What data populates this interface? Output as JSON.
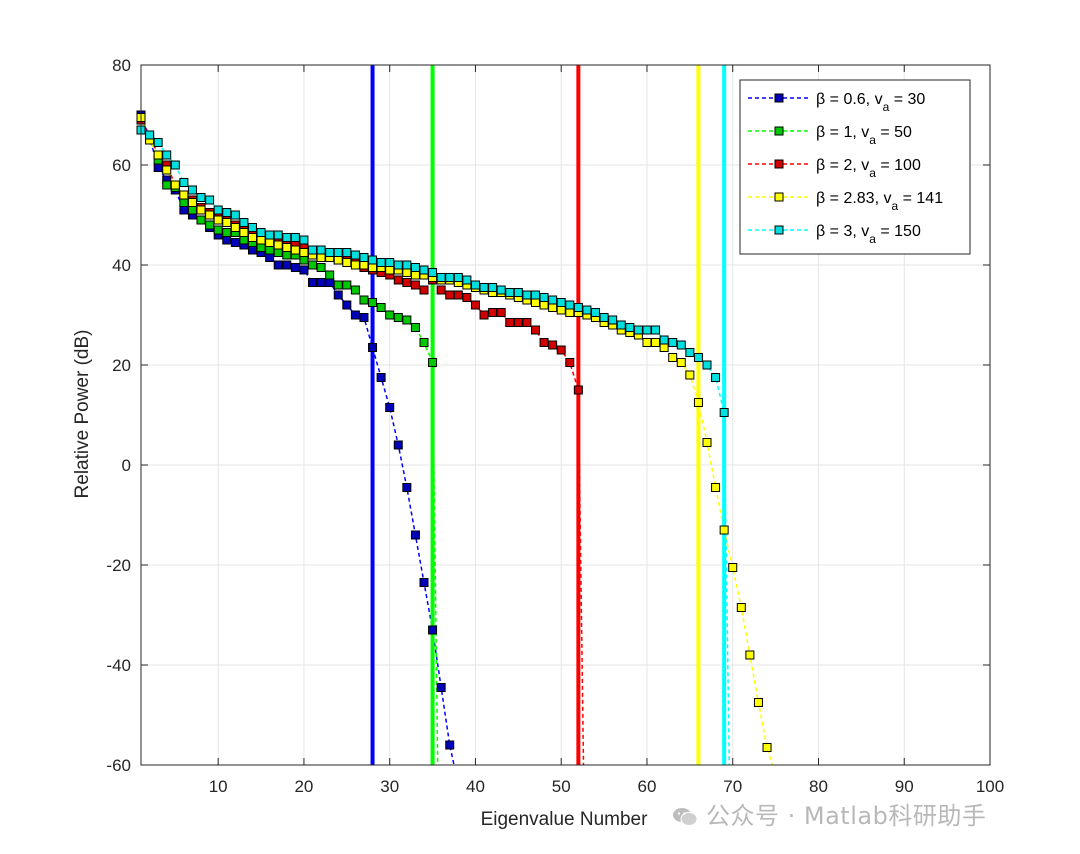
{
  "chart_data": {
    "type": "line",
    "title": "",
    "xlabel": "Eigenvalue Number",
    "ylabel": "Relative Power (dB)",
    "xlim": [
      1,
      100
    ],
    "ylim": [
      -60,
      80
    ],
    "xticks": [
      10,
      20,
      30,
      40,
      50,
      60,
      70,
      80,
      90,
      100
    ],
    "yticks": [
      -60,
      -40,
      -20,
      0,
      20,
      40,
      60,
      80
    ],
    "grid": true,
    "legend_position": "top-right",
    "series": [
      {
        "legend": [
          "β = 0.6,  v",
          "a",
          " = 30"
        ],
        "color": "#0000ff",
        "fill": "#0000b8",
        "cutoff": 28,
        "line_end": [
          37.5,
          -60
        ],
        "points": [
          [
            1,
            70
          ],
          [
            2,
            65.5
          ],
          [
            3,
            59.5
          ],
          [
            4,
            57
          ],
          [
            5,
            55
          ],
          [
            6,
            51
          ],
          [
            7,
            50
          ],
          [
            8,
            49
          ],
          [
            9,
            47.5
          ],
          [
            10,
            46
          ],
          [
            11,
            45
          ],
          [
            12,
            44.5
          ],
          [
            13,
            44
          ],
          [
            14,
            43
          ],
          [
            15,
            42.5
          ],
          [
            16,
            41.5
          ],
          [
            17,
            40
          ],
          [
            18,
            40
          ],
          [
            19,
            39.5
          ],
          [
            20,
            39
          ],
          [
            21,
            36.5
          ],
          [
            22,
            36.5
          ],
          [
            23,
            36.5
          ],
          [
            24,
            34
          ],
          [
            25,
            32
          ],
          [
            26,
            30
          ],
          [
            27,
            29.5
          ],
          [
            28,
            23.5
          ],
          [
            29,
            17.5
          ],
          [
            30,
            11.5
          ],
          [
            31,
            4
          ],
          [
            32,
            -4.5
          ],
          [
            33,
            -14
          ],
          [
            34,
            -23.5
          ],
          [
            35,
            -33
          ],
          [
            36,
            -44.5
          ],
          [
            37,
            -56
          ]
        ]
      },
      {
        "legend": [
          "β = 1,     v",
          "a",
          " = 50"
        ],
        "color": "#00ff00",
        "fill": "#00c800",
        "cutoff": 35,
        "line_end": [
          35.6,
          -60
        ],
        "points": [
          [
            1,
            69.5
          ],
          [
            2,
            65.5
          ],
          [
            3,
            61
          ],
          [
            4,
            56
          ],
          [
            5,
            55.5
          ],
          [
            6,
            52.5
          ],
          [
            7,
            51
          ],
          [
            8,
            49
          ],
          [
            9,
            48
          ],
          [
            10,
            47
          ],
          [
            11,
            46.5
          ],
          [
            12,
            46.5
          ],
          [
            13,
            45
          ],
          [
            14,
            44.5
          ],
          [
            15,
            43.5
          ],
          [
            16,
            43
          ],
          [
            17,
            42.5
          ],
          [
            18,
            42
          ],
          [
            19,
            42
          ],
          [
            20,
            41
          ],
          [
            21,
            40
          ],
          [
            22,
            39.5
          ],
          [
            23,
            38
          ],
          [
            24,
            36
          ],
          [
            25,
            36
          ],
          [
            26,
            35
          ],
          [
            27,
            33
          ],
          [
            28,
            32.5
          ],
          [
            29,
            31.5
          ],
          [
            30,
            30
          ],
          [
            31,
            29.5
          ],
          [
            32,
            29
          ],
          [
            33,
            27.5
          ],
          [
            34,
            24.5
          ],
          [
            35,
            20.5
          ]
        ]
      },
      {
        "legend": [
          "β = 2,     v",
          "a",
          " = 100"
        ],
        "color": "#ff0000",
        "fill": "#d00000",
        "cutoff": 52,
        "line_end": [
          52.6,
          -60
        ],
        "points": [
          [
            1,
            69
          ],
          [
            2,
            66
          ],
          [
            3,
            62
          ],
          [
            4,
            60
          ],
          [
            5,
            56
          ],
          [
            6,
            54
          ],
          [
            7,
            53
          ],
          [
            8,
            51.5
          ],
          [
            9,
            50.5
          ],
          [
            10,
            49.5
          ],
          [
            11,
            49
          ],
          [
            12,
            48
          ],
          [
            13,
            47
          ],
          [
            14,
            46
          ],
          [
            15,
            45.5
          ],
          [
            16,
            45
          ],
          [
            17,
            44.5
          ],
          [
            18,
            44
          ],
          [
            19,
            44
          ],
          [
            20,
            43.5
          ],
          [
            21,
            42.5
          ],
          [
            22,
            42.5
          ],
          [
            23,
            42
          ],
          [
            24,
            41
          ],
          [
            25,
            41
          ],
          [
            26,
            40.5
          ],
          [
            27,
            39.5
          ],
          [
            28,
            39
          ],
          [
            29,
            38.5
          ],
          [
            30,
            38
          ],
          [
            31,
            37
          ],
          [
            32,
            36.5
          ],
          [
            33,
            36
          ],
          [
            34,
            35
          ],
          [
            35,
            37
          ],
          [
            36,
            35
          ],
          [
            37,
            34
          ],
          [
            38,
            34
          ],
          [
            39,
            33.5
          ],
          [
            40,
            32
          ],
          [
            41,
            30
          ],
          [
            42,
            30.5
          ],
          [
            43,
            30.5
          ],
          [
            44,
            28.5
          ],
          [
            45,
            28.5
          ],
          [
            46,
            28.5
          ],
          [
            47,
            27
          ],
          [
            48,
            24.5
          ],
          [
            49,
            24
          ],
          [
            50,
            23
          ],
          [
            51,
            20.5
          ],
          [
            52,
            15
          ]
        ]
      },
      {
        "legend": [
          "β = 2.83, v",
          "a",
          " = 141"
        ],
        "color": "#ffff00",
        "fill": "#ffff00",
        "cutoff": 66,
        "line_end": [
          74.6,
          -60
        ],
        "points": [
          [
            1,
            69.5
          ],
          [
            2,
            65
          ],
          [
            3,
            62
          ],
          [
            4,
            59
          ],
          [
            5,
            56
          ],
          [
            6,
            54
          ],
          [
            7,
            52.5
          ],
          [
            8,
            51
          ],
          [
            9,
            50
          ],
          [
            10,
            49
          ],
          [
            11,
            48.5
          ],
          [
            12,
            47.5
          ],
          [
            13,
            46.5
          ],
          [
            14,
            45.5
          ],
          [
            15,
            45
          ],
          [
            16,
            44.5
          ],
          [
            17,
            44
          ],
          [
            18,
            43.5
          ],
          [
            19,
            43
          ],
          [
            20,
            42.5
          ],
          [
            21,
            42
          ],
          [
            22,
            41.5
          ],
          [
            23,
            41.5
          ],
          [
            24,
            41
          ],
          [
            25,
            40.5
          ],
          [
            26,
            40
          ],
          [
            27,
            40
          ],
          [
            28,
            39.5
          ],
          [
            29,
            39.5
          ],
          [
            30,
            39
          ],
          [
            31,
            39
          ],
          [
            32,
            38.5
          ],
          [
            33,
            38
          ],
          [
            34,
            38
          ],
          [
            35,
            37.5
          ],
          [
            36,
            37
          ],
          [
            37,
            37
          ],
          [
            38,
            36.5
          ],
          [
            39,
            36
          ],
          [
            40,
            35.5
          ],
          [
            41,
            35
          ],
          [
            42,
            34.5
          ],
          [
            43,
            34.5
          ],
          [
            44,
            34
          ],
          [
            45,
            33.5
          ],
          [
            46,
            33
          ],
          [
            47,
            32.5
          ],
          [
            48,
            32
          ],
          [
            49,
            31.5
          ],
          [
            50,
            31
          ],
          [
            51,
            30.5
          ],
          [
            52,
            30.5
          ],
          [
            53,
            30
          ],
          [
            54,
            29.5
          ],
          [
            55,
            28.5
          ],
          [
            56,
            28
          ],
          [
            57,
            27
          ],
          [
            58,
            26.5
          ],
          [
            59,
            26
          ],
          [
            60,
            24.5
          ],
          [
            61,
            24.5
          ],
          [
            62,
            23.5
          ],
          [
            63,
            21.5
          ],
          [
            64,
            20.5
          ],
          [
            65,
            18
          ],
          [
            66,
            12.5
          ],
          [
            67,
            4.5
          ],
          [
            68,
            -4.5
          ],
          [
            69,
            -13
          ],
          [
            70,
            -20.5
          ],
          [
            71,
            -28.5
          ],
          [
            72,
            -38
          ],
          [
            73,
            -47.5
          ],
          [
            74,
            -56.5
          ]
        ]
      },
      {
        "legend": [
          "β = 3,     v",
          "a",
          " = 150"
        ],
        "color": "#00ffff",
        "fill": "#00dede",
        "cutoff": 69,
        "line_end": [
          69.6,
          -60
        ],
        "points": [
          [
            1,
            67
          ],
          [
            2,
            66
          ],
          [
            3,
            64.5
          ],
          [
            4,
            62
          ],
          [
            5,
            60
          ],
          [
            6,
            56.5
          ],
          [
            7,
            55
          ],
          [
            8,
            53.5
          ],
          [
            9,
            53
          ],
          [
            10,
            51
          ],
          [
            11,
            50.5
          ],
          [
            12,
            50
          ],
          [
            13,
            48.5
          ],
          [
            14,
            47.5
          ],
          [
            15,
            46.5
          ],
          [
            16,
            46
          ],
          [
            17,
            46
          ],
          [
            18,
            45.5
          ],
          [
            19,
            45.5
          ],
          [
            20,
            45
          ],
          [
            21,
            43
          ],
          [
            22,
            43
          ],
          [
            23,
            42.5
          ],
          [
            24,
            42.5
          ],
          [
            25,
            42.5
          ],
          [
            26,
            42
          ],
          [
            27,
            41.5
          ],
          [
            28,
            41
          ],
          [
            29,
            40.5
          ],
          [
            30,
            40.5
          ],
          [
            31,
            40
          ],
          [
            32,
            40
          ],
          [
            33,
            39.5
          ],
          [
            34,
            39
          ],
          [
            35,
            38.5
          ],
          [
            36,
            37.5
          ],
          [
            37,
            37.5
          ],
          [
            38,
            37.5
          ],
          [
            39,
            37
          ],
          [
            40,
            36
          ],
          [
            41,
            35.5
          ],
          [
            42,
            35.5
          ],
          [
            43,
            35
          ],
          [
            44,
            34.5
          ],
          [
            45,
            34.5
          ],
          [
            46,
            34
          ],
          [
            47,
            34
          ],
          [
            48,
            33.5
          ],
          [
            49,
            33
          ],
          [
            50,
            32.5
          ],
          [
            51,
            32
          ],
          [
            52,
            31.5
          ],
          [
            53,
            31
          ],
          [
            54,
            30.5
          ],
          [
            55,
            29.5
          ],
          [
            56,
            29
          ],
          [
            57,
            28
          ],
          [
            58,
            27.5
          ],
          [
            59,
            27
          ],
          [
            60,
            27
          ],
          [
            61,
            27
          ],
          [
            62,
            25
          ],
          [
            63,
            24.5
          ],
          [
            64,
            24
          ],
          [
            65,
            22.5
          ],
          [
            66,
            21.5
          ],
          [
            67,
            20
          ],
          [
            68,
            17.5
          ],
          [
            69,
            10.5
          ]
        ]
      }
    ]
  },
  "watermark": "公众号 · Matlab科研助手"
}
